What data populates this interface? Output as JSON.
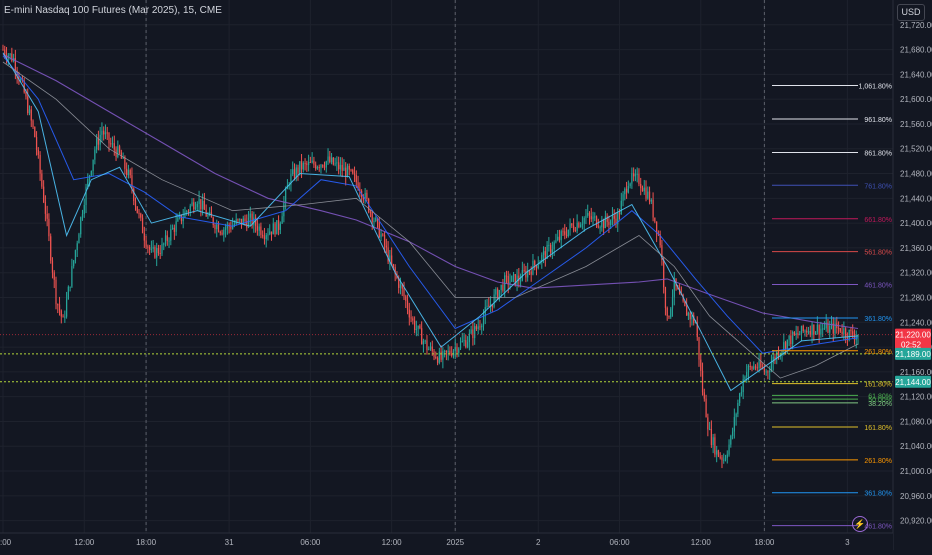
{
  "header": {
    "title": "E-mini Nasdaq 100 Futures (Mar 2025), 15, CME",
    "currency": "USD"
  },
  "colors": {
    "background": "#131722",
    "up": "#26a69a",
    "down": "#ef5350",
    "grid": "#1e222d",
    "axis_text": "#b2b5be",
    "ma_purple": "#7e57c2",
    "ma_blue": "#2962ff",
    "ma_cyan": "#4fc3f7",
    "ma_grey": "#9598a1"
  },
  "icons": {
    "alert": "lightning-icon"
  },
  "chart_data": {
    "type": "candlestick",
    "ylim": [
      20900,
      21760
    ],
    "y_ticks": [
      21720,
      21680,
      21640,
      21600,
      21560,
      21520,
      21480,
      21440,
      21400,
      21360,
      21320,
      21280,
      21240,
      21200,
      21160,
      21120,
      21080,
      21040,
      21000,
      20960,
      20920
    ],
    "y_tick_labels": [
      "21,720.00",
      "21,680.00",
      "21,640.00",
      "21,600.00",
      "21,560.00",
      "21,520.00",
      "21,480.00",
      "21,440.00",
      "21,400.00",
      "21,360.00",
      "21,320.00",
      "21,280.00",
      "21,240.00",
      "21,200.00",
      "21,160.00",
      "21,120.00",
      "21,080.00",
      "21,040.00",
      "21,000.00",
      "20,960.00",
      "20,920.00"
    ],
    "x_ticks": [
      {
        "label": ":00",
        "bar": 0
      },
      {
        "label": "12:00",
        "bar": 46
      },
      {
        "label": "18:00",
        "bar": 81
      },
      {
        "label": "31",
        "bar": 128
      },
      {
        "label": "06:00",
        "bar": 174
      },
      {
        "label": "12:00",
        "bar": 220
      },
      {
        "label": "2025",
        "bar": 256
      },
      {
        "label": "2",
        "bar": 303
      },
      {
        "label": "06:00",
        "bar": 349
      },
      {
        "label": "12:00",
        "bar": 395
      },
      {
        "label": "18:00",
        "bar": 431
      },
      {
        "label": "3",
        "bar": 478
      }
    ],
    "session_lines": [
      81,
      256,
      431
    ],
    "bars_count": 485,
    "anchors": [
      [
        0,
        21680
      ],
      [
        6,
        21665
      ],
      [
        12,
        21610
      ],
      [
        18,
        21540
      ],
      [
        24,
        21420
      ],
      [
        30,
        21280
      ],
      [
        34,
        21240
      ],
      [
        40,
        21340
      ],
      [
        46,
        21440
      ],
      [
        52,
        21520
      ],
      [
        56,
        21550
      ],
      [
        60,
        21530
      ],
      [
        66,
        21510
      ],
      [
        72,
        21470
      ],
      [
        76,
        21420
      ],
      [
        80,
        21380
      ],
      [
        84,
        21350
      ],
      [
        90,
        21360
      ],
      [
        96,
        21390
      ],
      [
        104,
        21420
      ],
      [
        110,
        21440
      ],
      [
        116,
        21410
      ],
      [
        124,
        21390
      ],
      [
        132,
        21400
      ],
      [
        140,
        21405
      ],
      [
        148,
        21385
      ],
      [
        156,
        21395
      ],
      [
        162,
        21470
      ],
      [
        168,
        21490
      ],
      [
        176,
        21495
      ],
      [
        184,
        21500
      ],
      [
        190,
        21490
      ],
      [
        196,
        21480
      ],
      [
        202,
        21460
      ],
      [
        208,
        21420
      ],
      [
        214,
        21380
      ],
      [
        220,
        21330
      ],
      [
        226,
        21290
      ],
      [
        232,
        21240
      ],
      [
        240,
        21200
      ],
      [
        248,
        21180
      ],
      [
        256,
        21200
      ],
      [
        262,
        21210
      ],
      [
        268,
        21230
      ],
      [
        276,
        21270
      ],
      [
        284,
        21305
      ],
      [
        292,
        21310
      ],
      [
        300,
        21330
      ],
      [
        310,
        21360
      ],
      [
        320,
        21390
      ],
      [
        330,
        21410
      ],
      [
        340,
        21400
      ],
      [
        348,
        21410
      ],
      [
        354,
        21470
      ],
      [
        360,
        21470
      ],
      [
        366,
        21440
      ],
      [
        372,
        21370
      ],
      [
        376,
        21240
      ],
      [
        380,
        21300
      ],
      [
        386,
        21260
      ],
      [
        392,
        21240
      ],
      [
        396,
        21130
      ],
      [
        400,
        21060
      ],
      [
        404,
        21030
      ],
      [
        408,
        21020
      ],
      [
        412,
        21050
      ],
      [
        416,
        21110
      ],
      [
        420,
        21160
      ],
      [
        426,
        21170
      ],
      [
        432,
        21160
      ],
      [
        438,
        21190
      ],
      [
        444,
        21210
      ],
      [
        450,
        21220
      ],
      [
        456,
        21230
      ],
      [
        462,
        21230
      ],
      [
        468,
        21230
      ],
      [
        474,
        21230
      ],
      [
        480,
        21220
      ]
    ],
    "moving_averages": [
      {
        "color": "#7e57c2",
        "width": 1.1,
        "points": [
          [
            0,
            21672
          ],
          [
            30,
            21630
          ],
          [
            60,
            21580
          ],
          [
            90,
            21530
          ],
          [
            120,
            21480
          ],
          [
            150,
            21440
          ],
          [
            180,
            21420
          ],
          [
            200,
            21405
          ],
          [
            230,
            21370
          ],
          [
            256,
            21330
          ],
          [
            280,
            21305
          ],
          [
            300,
            21295
          ],
          [
            330,
            21300
          ],
          [
            360,
            21305
          ],
          [
            376,
            21310
          ],
          [
            400,
            21285
          ],
          [
            430,
            21255
          ],
          [
            460,
            21240
          ],
          [
            484,
            21230
          ]
        ]
      },
      {
        "color": "#2962ff",
        "width": 1,
        "points": [
          [
            0,
            21670
          ],
          [
            20,
            21600
          ],
          [
            40,
            21470
          ],
          [
            60,
            21480
          ],
          [
            80,
            21450
          ],
          [
            100,
            21410
          ],
          [
            130,
            21395
          ],
          [
            160,
            21420
          ],
          [
            180,
            21470
          ],
          [
            200,
            21460
          ],
          [
            230,
            21330
          ],
          [
            256,
            21230
          ],
          [
            280,
            21260
          ],
          [
            300,
            21300
          ],
          [
            330,
            21360
          ],
          [
            356,
            21420
          ],
          [
            372,
            21380
          ],
          [
            392,
            21310
          ],
          [
            410,
            21250
          ],
          [
            430,
            21190
          ],
          [
            450,
            21200
          ],
          [
            484,
            21215
          ]
        ]
      },
      {
        "color": "#4fc3f7",
        "width": 1,
        "points": [
          [
            0,
            21675
          ],
          [
            20,
            21580
          ],
          [
            36,
            21380
          ],
          [
            50,
            21470
          ],
          [
            66,
            21490
          ],
          [
            84,
            21400
          ],
          [
            110,
            21420
          ],
          [
            140,
            21395
          ],
          [
            168,
            21480
          ],
          [
            196,
            21475
          ],
          [
            222,
            21320
          ],
          [
            248,
            21200
          ],
          [
            270,
            21250
          ],
          [
            296,
            21320
          ],
          [
            330,
            21390
          ],
          [
            356,
            21430
          ],
          [
            376,
            21330
          ],
          [
            396,
            21220
          ],
          [
            412,
            21130
          ],
          [
            432,
            21170
          ],
          [
            452,
            21210
          ],
          [
            484,
            21218
          ]
        ]
      },
      {
        "color": "#9598a1",
        "width": 0.8,
        "points": [
          [
            0,
            21660
          ],
          [
            30,
            21600
          ],
          [
            60,
            21520
          ],
          [
            90,
            21470
          ],
          [
            130,
            21420
          ],
          [
            170,
            21430
          ],
          [
            200,
            21440
          ],
          [
            230,
            21370
          ],
          [
            256,
            21280
          ],
          [
            290,
            21280
          ],
          [
            330,
            21330
          ],
          [
            360,
            21380
          ],
          [
            380,
            21330
          ],
          [
            400,
            21250
          ],
          [
            420,
            21200
          ],
          [
            440,
            21150
          ],
          [
            460,
            21170
          ],
          [
            484,
            21205
          ]
        ]
      }
    ],
    "fib_upper": [
      {
        "label": "1,061.80%",
        "value": 21622,
        "color": "#e0e3eb"
      },
      {
        "label": "961.80%",
        "value": 21568,
        "color": "#e0e3eb"
      },
      {
        "label": "861.80%",
        "value": 21514,
        "color": "#e0e3eb"
      },
      {
        "label": "761.80%",
        "value": 21461,
        "color": "#3f51b5"
      },
      {
        "label": "661.80%",
        "value": 21407,
        "color": "#c2185b"
      },
      {
        "label": "561.80%",
        "value": 21354,
        "color": "#d84a4a"
      },
      {
        "label": "461.80%",
        "value": 21301,
        "color": "#7e57c2"
      },
      {
        "label": "361.80%",
        "value": 21247,
        "color": "#2196f3"
      },
      {
        "label": "261.80%",
        "value": 21194,
        "color": "#ff9800"
      },
      {
        "label": "161.80%",
        "value": 21141,
        "color": "#e0c02a"
      }
    ],
    "fib_lower": [
      {
        "label": "61.80%",
        "value": 21122,
        "color": "#4caf50"
      },
      {
        "label": "50.00%",
        "value": 21116,
        "color": "#4caf50"
      },
      {
        "label": "38.20%",
        "value": 21110,
        "color": "#81c784"
      },
      {
        "label": "161.80%",
        "value": 21071,
        "color": "#e0c02a"
      },
      {
        "label": "261.80%",
        "value": 21018,
        "color": "#ff9800"
      },
      {
        "label": "361.80%",
        "value": 20965,
        "color": "#2196f3"
      },
      {
        "label": "461.80%",
        "value": 20912,
        "color": "#7e57c2"
      },
      {
        "label": "561.80%",
        "value": 20858,
        "color": "#d84a4a"
      }
    ],
    "current_price": {
      "value": 21220,
      "label": "21,220.00",
      "countdown": "02:52",
      "color": "#f23645"
    },
    "price_line": 21220,
    "level_189": {
      "value": 21189,
      "label": "21,189.00",
      "color": "#26a69a"
    },
    "level_144": {
      "value": 21144,
      "label": "21,144.00",
      "color": "#26a69a"
    }
  }
}
